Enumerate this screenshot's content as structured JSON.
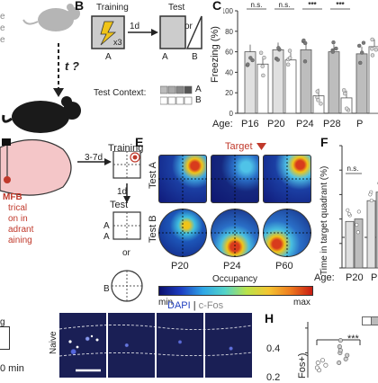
{
  "panel_labels": {
    "b": "B",
    "c": "C",
    "e": "E",
    "f": "F",
    "h": "H"
  },
  "left_col": {
    "lines": [
      "e",
      "e",
      "e"
    ],
    "t_label": "t ?"
  },
  "panel_b": {
    "training": "Training",
    "x3": "x3",
    "gap": "1d",
    "test": "Test",
    "or": "or",
    "ctx_a": "A",
    "ctx_a2": "A",
    "ctx_b": "B",
    "test_context": "Test Context:",
    "legend_a": "A",
    "legend_b": "B"
  },
  "panel_c": {
    "ylabel": "Freezing (%)",
    "age_prefix": "Age:",
    "ages": [
      "P16",
      "P20",
      "P24",
      "P28",
      "P"
    ],
    "sig": [
      "n.s.",
      "n.s.",
      "***",
      "***"
    ],
    "yticks": [
      "0",
      "20",
      "40",
      "60",
      "80",
      "100"
    ]
  },
  "panel_d": {
    "mfb": "MFB",
    "stim_lines": [
      "trical",
      "on in",
      "adrant",
      "aining"
    ],
    "days": "3-7d",
    "training": "Training",
    "a1": "A",
    "gap": "1d",
    "test": "Test",
    "a2": "A",
    "or": "or",
    "b": "B"
  },
  "panel_e": {
    "target": "Target",
    "row_a": "Test A",
    "row_b": "Test B",
    "ages": [
      "P20",
      "P24",
      "P60"
    ],
    "cbar_title": "Occupancy",
    "cbar_min": "min",
    "cbar_max": "max"
  },
  "panel_f": {
    "ylabel": "Time in target quadrant (%)",
    "age_prefix": "Age:",
    "ages": [
      "P20",
      "P"
    ],
    "sig": [
      "n.s."
    ],
    "yticks": [
      "0",
      "20",
      "40",
      "60",
      "80",
      "100"
    ]
  },
  "panel_g": {
    "stain_dapi": "DAPI",
    "stain_sep": "|",
    "stain_cfos": "c-Fos",
    "row_label": "Naive",
    "partial_left": "g",
    "partial_time": "0 min"
  },
  "panel_h": {
    "ylabel": "Fos+)",
    "sig": "***",
    "yticks": [
      "0.4",
      "0.2"
    ]
  },
  "colors": {
    "bar_fill": "#e8e8e8",
    "bar_dark": "#9a9a9a",
    "red": "#c0392b",
    "micro_bg": "#1a1f55"
  },
  "chart_data": [
    {
      "type": "bar",
      "title": "",
      "ylabel": "Freezing (%)",
      "ylim": [
        0,
        100
      ],
      "categories": [
        "P16",
        "P20",
        "P24",
        "P28",
        "P"
      ],
      "series": [
        {
          "values": [
            60,
            62,
            62,
            60,
            58
          ]
        },
        {
          "values": [
            48,
            52,
            17,
            15,
            65
          ]
        }
      ]
    },
    {
      "type": "bar",
      "title": "",
      "ylabel": "Time in target quadrant (%)",
      "ylim": [
        0,
        100
      ],
      "categories": [
        "P20",
        "P"
      ],
      "series": [
        {
          "values": [
            38,
            55
          ]
        },
        {
          "values": [
            40,
            62
          ]
        }
      ]
    },
    {
      "type": "scatter",
      "title": "",
      "ylabel": "Fos+)",
      "ylim": [
        0,
        0.45
      ],
      "series": [
        {
          "values": [
            0.06,
            0.1,
            0.14,
            0.08,
            0.12
          ]
        },
        {
          "values": [
            0.12,
            0.2,
            0.25,
            0.18,
            0.3,
            0.22,
            0.15
          ]
        }
      ]
    }
  ]
}
